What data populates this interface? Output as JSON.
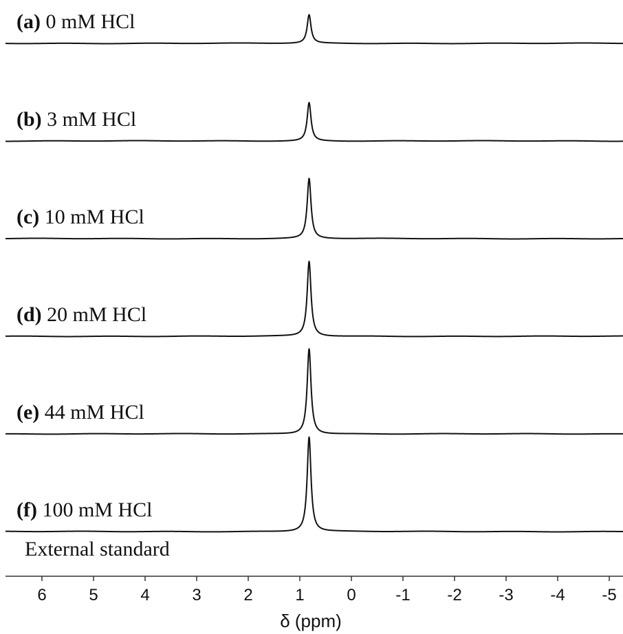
{
  "chart_data": {
    "type": "line",
    "xlabel": "δ (ppm)",
    "x_reversed": true,
    "xlim": [
      6.6,
      -5.3
    ],
    "xticks": [
      6,
      5,
      4,
      3,
      2,
      1,
      0,
      -1,
      -2,
      -3,
      -4,
      -5
    ],
    "xtick_labels": [
      "6",
      "5",
      "4",
      "3",
      "2",
      "1",
      "0",
      "-1",
      "-2",
      "-3",
      "-4",
      "-5"
    ],
    "y_axis_shown": false,
    "grid": false,
    "legend": "none",
    "line_color": "#111111",
    "series": [
      {
        "name": "0 mM HCl",
        "tag": "(a)",
        "peak_ppm": 0.82,
        "relative_height": 0.46,
        "hwhm_ppm": 0.045
      },
      {
        "name": "3 mM HCl",
        "tag": "(b)",
        "peak_ppm": 0.82,
        "relative_height": 0.62,
        "hwhm_ppm": 0.045
      },
      {
        "name": "10 mM HCl",
        "tag": "(c)",
        "peak_ppm": 0.82,
        "relative_height": 0.97,
        "hwhm_ppm": 0.045
      },
      {
        "name": "20 mM HCl",
        "tag": "(d)",
        "peak_ppm": 0.82,
        "relative_height": 1.21,
        "hwhm_ppm": 0.045
      },
      {
        "name": "44 mM HCl",
        "tag": "(e)",
        "peak_ppm": 0.82,
        "relative_height": 1.38,
        "hwhm_ppm": 0.045
      },
      {
        "name": "100 mM HCl",
        "tag": "(f)",
        "peak_ppm": 0.82,
        "relative_height": 1.53,
        "hwhm_ppm": 0.045
      }
    ],
    "annotations": [
      "External standard"
    ]
  }
}
